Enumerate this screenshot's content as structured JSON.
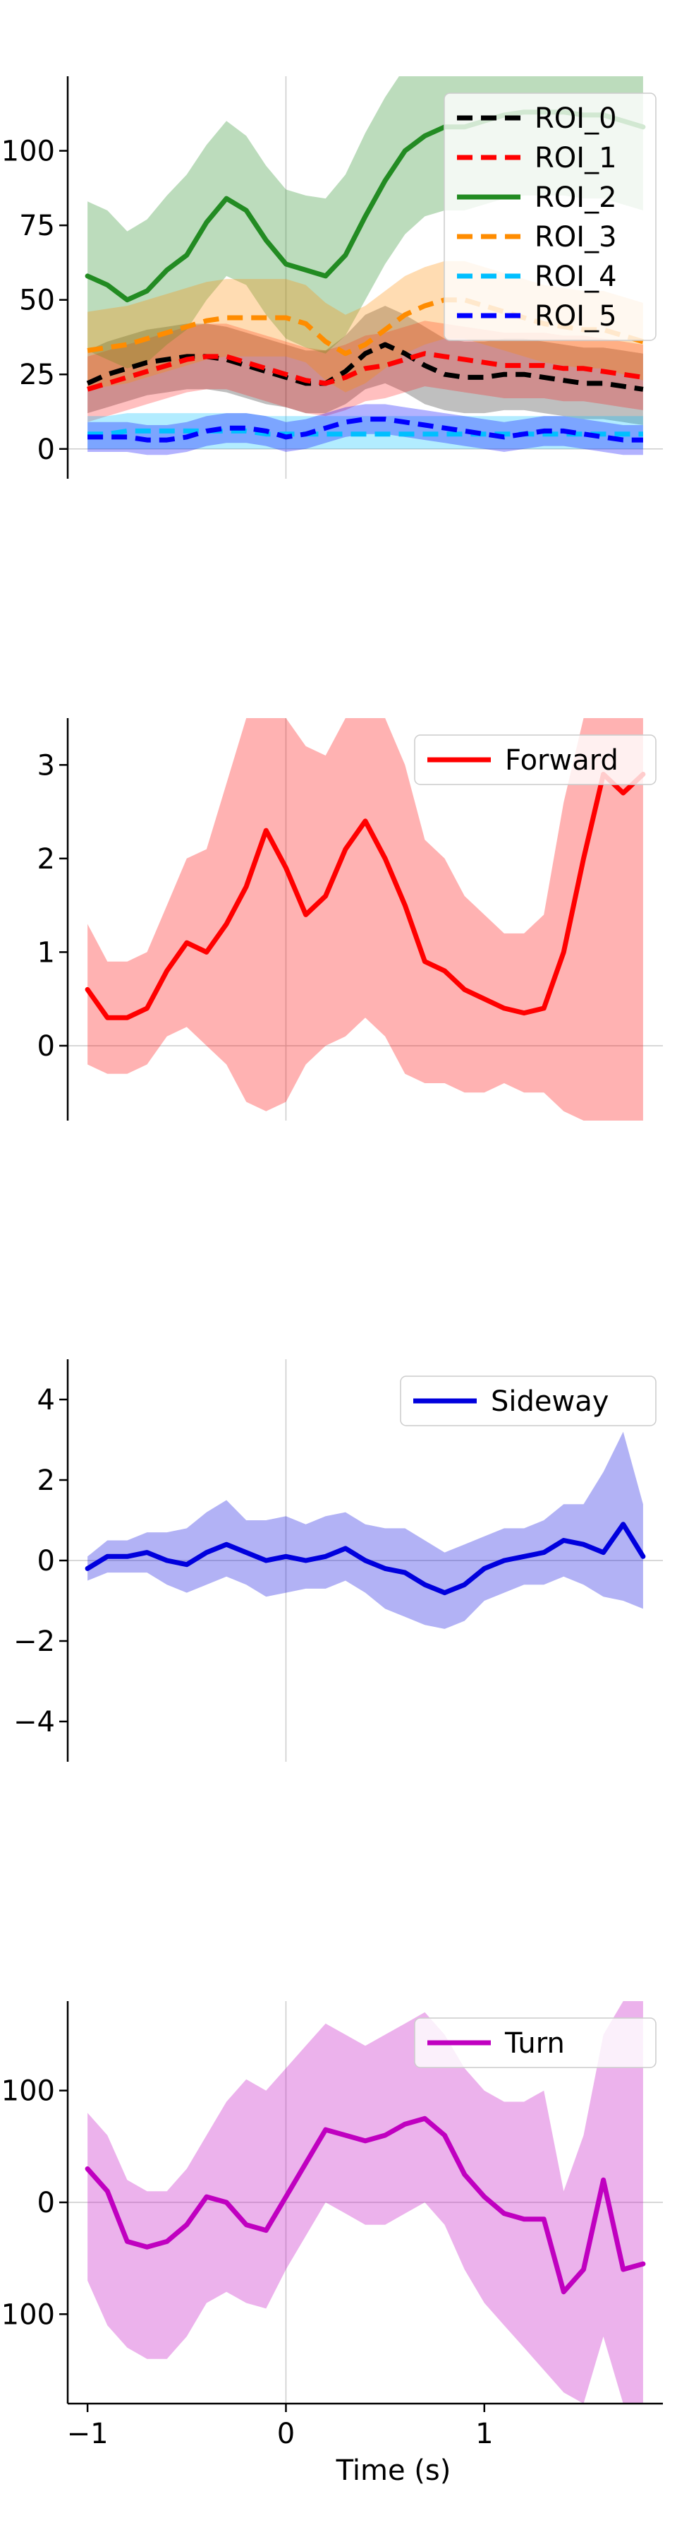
{
  "figure": {
    "xlabel": "Time (s)",
    "x_ticks": [
      -1,
      0,
      1
    ],
    "x_tick_labels": [
      "−1",
      "0",
      "1"
    ],
    "xlim": [
      -1.1,
      1.9
    ]
  },
  "chart_data": [
    {
      "type": "line",
      "ylim": [
        -10,
        125
      ],
      "y_ticks": [
        0,
        25,
        50,
        75,
        100
      ],
      "y_tick_labels": [
        "0",
        "25",
        "50",
        "75",
        "100"
      ],
      "legend_position": "top-right",
      "vline_x": 0,
      "hline_y": 0,
      "x": [
        -1.0,
        -0.9,
        -0.8,
        -0.7,
        -0.6,
        -0.5,
        -0.4,
        -0.3,
        -0.2,
        -0.1,
        0.0,
        0.1,
        0.2,
        0.3,
        0.4,
        0.5,
        0.6,
        0.7,
        0.8,
        0.9,
        1.0,
        1.1,
        1.2,
        1.3,
        1.4,
        1.5,
        1.6,
        1.7,
        1.8
      ],
      "series": [
        {
          "name": "ROI_0",
          "color": "#000000",
          "dashed": true,
          "band_opacity": 0.25,
          "values": [
            22,
            25,
            27,
            29,
            30,
            31,
            31,
            30,
            28,
            26,
            24,
            22,
            22,
            26,
            32,
            35,
            32,
            28,
            25,
            24,
            24,
            25,
            25,
            24,
            23,
            22,
            22,
            21,
            20
          ],
          "lower": [
            12,
            14,
            16,
            18,
            19,
            20,
            20,
            19,
            17,
            15,
            14,
            12,
            12,
            15,
            20,
            22,
            19,
            15,
            13,
            12,
            12,
            13,
            13,
            12,
            11,
            10,
            10,
            9,
            8
          ],
          "upper": [
            33,
            36,
            38,
            40,
            41,
            42,
            42,
            41,
            39,
            37,
            35,
            33,
            33,
            38,
            45,
            48,
            45,
            41,
            37,
            36,
            36,
            37,
            37,
            36,
            35,
            34,
            34,
            33,
            32
          ]
        },
        {
          "name": "ROI_1",
          "color": "#ff0000",
          "dashed": true,
          "band_opacity": 0.25,
          "values": [
            20,
            22,
            24,
            26,
            28,
            30,
            31,
            31,
            29,
            27,
            25,
            23,
            22,
            24,
            27,
            28,
            30,
            32,
            31,
            30,
            29,
            28,
            28,
            28,
            27,
            27,
            26,
            25,
            24
          ],
          "lower": [
            9,
            11,
            13,
            15,
            17,
            19,
            20,
            20,
            18,
            16,
            14,
            12,
            11,
            13,
            16,
            17,
            19,
            21,
            20,
            19,
            18,
            17,
            17,
            17,
            16,
            16,
            15,
            14,
            13
          ],
          "upper": [
            31,
            33,
            35,
            37,
            39,
            41,
            42,
            42,
            40,
            38,
            36,
            34,
            33,
            35,
            38,
            39,
            41,
            43,
            42,
            41,
            40,
            39,
            39,
            39,
            38,
            38,
            37,
            36,
            35
          ]
        },
        {
          "name": "ROI_2",
          "color": "#228b22",
          "dashed": false,
          "band_opacity": 0.3,
          "values": [
            58,
            55,
            50,
            53,
            60,
            65,
            76,
            84,
            80,
            70,
            62,
            60,
            58,
            65,
            78,
            90,
            100,
            105,
            108,
            108,
            110,
            112,
            113,
            113,
            113,
            112,
            112,
            110,
            108
          ],
          "lower": [
            33,
            30,
            27,
            29,
            35,
            40,
            50,
            58,
            55,
            45,
            37,
            34,
            32,
            38,
            50,
            62,
            72,
            78,
            80,
            80,
            82,
            84,
            85,
            85,
            85,
            84,
            84,
            82,
            80
          ],
          "upper": [
            83,
            80,
            73,
            77,
            85,
            92,
            102,
            110,
            105,
            95,
            87,
            85,
            84,
            92,
            106,
            118,
            128,
            132,
            135,
            135,
            137,
            140,
            141,
            141,
            141,
            140,
            140,
            138,
            136
          ]
        },
        {
          "name": "ROI_3",
          "color": "#ff8c00",
          "dashed": true,
          "band_opacity": 0.3,
          "values": [
            33,
            34,
            35,
            37,
            39,
            41,
            43,
            44,
            44,
            44,
            44,
            42,
            36,
            32,
            35,
            40,
            45,
            48,
            50,
            50,
            48,
            46,
            44,
            42,
            41,
            40,
            40,
            38,
            36
          ],
          "lower": [
            20,
            21,
            22,
            24,
            26,
            28,
            30,
            31,
            31,
            31,
            31,
            29,
            23,
            19,
            22,
            27,
            32,
            35,
            37,
            37,
            35,
            33,
            31,
            29,
            28,
            27,
            27,
            25,
            23
          ],
          "upper": [
            46,
            47,
            48,
            50,
            52,
            54,
            56,
            57,
            57,
            57,
            57,
            55,
            49,
            45,
            48,
            53,
            58,
            61,
            63,
            63,
            61,
            59,
            57,
            55,
            54,
            53,
            53,
            51,
            49
          ]
        },
        {
          "name": "ROI_4",
          "color": "#00bfff",
          "dashed": true,
          "band_opacity": 0.3,
          "values": [
            5,
            5,
            6,
            6,
            6,
            6,
            6,
            6,
            6,
            5,
            5,
            5,
            5,
            5,
            5,
            5,
            5,
            5,
            5,
            5,
            5,
            5,
            5,
            5,
            5,
            5,
            5,
            5,
            5
          ],
          "lower": [
            0,
            0,
            0,
            0,
            0,
            0,
            0,
            0,
            0,
            0,
            0,
            0,
            0,
            0,
            0,
            0,
            0,
            0,
            0,
            0,
            0,
            0,
            0,
            0,
            0,
            0,
            0,
            0,
            0
          ],
          "upper": [
            11,
            11,
            12,
            12,
            12,
            12,
            12,
            12,
            12,
            11,
            11,
            11,
            11,
            11,
            11,
            11,
            11,
            11,
            11,
            11,
            11,
            11,
            11,
            11,
            11,
            11,
            11,
            11,
            11
          ]
        },
        {
          "name": "ROI_5",
          "color": "#0000ff",
          "dashed": true,
          "band_opacity": 0.3,
          "values": [
            4,
            4,
            4,
            3,
            3,
            4,
            6,
            7,
            7,
            6,
            4,
            5,
            7,
            9,
            10,
            10,
            9,
            8,
            7,
            6,
            5,
            4,
            5,
            6,
            6,
            5,
            4,
            3,
            3
          ],
          "lower": [
            -1,
            -1,
            -1,
            -2,
            -2,
            -1,
            1,
            2,
            2,
            1,
            -1,
            0,
            2,
            4,
            5,
            5,
            4,
            3,
            2,
            1,
            0,
            -1,
            0,
            1,
            1,
            0,
            -1,
            -2,
            -2
          ],
          "upper": [
            9,
            9,
            9,
            8,
            8,
            9,
            11,
            12,
            12,
            11,
            9,
            10,
            12,
            14,
            15,
            15,
            14,
            13,
            12,
            11,
            10,
            9,
            10,
            11,
            11,
            10,
            9,
            8,
            8
          ]
        }
      ]
    },
    {
      "type": "line",
      "ylim": [
        -0.8,
        3.5
      ],
      "y_ticks": [
        0,
        1,
        2,
        3
      ],
      "y_tick_labels": [
        "0",
        "1",
        "2",
        "3"
      ],
      "legend_position": "top-right",
      "vline_x": 0,
      "hline_y": 0,
      "x": [
        -1.0,
        -0.9,
        -0.8,
        -0.7,
        -0.6,
        -0.5,
        -0.4,
        -0.3,
        -0.2,
        -0.1,
        0.0,
        0.1,
        0.2,
        0.3,
        0.4,
        0.5,
        0.6,
        0.7,
        0.8,
        0.9,
        1.0,
        1.1,
        1.2,
        1.3,
        1.4,
        1.5,
        1.6,
        1.7,
        1.8
      ],
      "series": [
        {
          "name": "Forward",
          "color": "#ff0000",
          "dashed": false,
          "band_opacity": 0.3,
          "values": [
            0.6,
            0.3,
            0.3,
            0.4,
            0.8,
            1.1,
            1.0,
            1.3,
            1.7,
            2.3,
            1.9,
            1.4,
            1.6,
            2.1,
            2.4,
            2.0,
            1.5,
            0.9,
            0.8,
            0.6,
            0.5,
            0.4,
            0.35,
            0.4,
            1.0,
            2.0,
            2.9,
            2.7,
            2.9
          ],
          "lower": [
            -0.2,
            -0.3,
            -0.3,
            -0.2,
            0.1,
            0.2,
            0.0,
            -0.2,
            -0.6,
            -0.7,
            -0.6,
            -0.2,
            0.0,
            0.1,
            0.3,
            0.1,
            -0.3,
            -0.4,
            -0.4,
            -0.5,
            -0.5,
            -0.4,
            -0.5,
            -0.5,
            -0.7,
            -0.8,
            -0.8,
            -0.8,
            -0.8
          ],
          "upper": [
            1.3,
            0.9,
            0.9,
            1.0,
            1.5,
            2.0,
            2.1,
            2.8,
            3.5,
            3.5,
            3.5,
            3.2,
            3.1,
            3.5,
            3.5,
            3.5,
            3.0,
            2.2,
            2.0,
            1.6,
            1.4,
            1.2,
            1.2,
            1.4,
            2.6,
            3.5,
            3.5,
            3.5,
            3.5
          ]
        }
      ]
    },
    {
      "type": "line",
      "ylim": [
        -5,
        5
      ],
      "y_ticks": [
        -4,
        -2,
        0,
        2,
        4
      ],
      "y_tick_labels": [
        "−4",
        "−2",
        "0",
        "2",
        "4"
      ],
      "legend_position": "top-right",
      "vline_x": 0,
      "hline_y": 0,
      "x": [
        -1.0,
        -0.9,
        -0.8,
        -0.7,
        -0.6,
        -0.5,
        -0.4,
        -0.3,
        -0.2,
        -0.1,
        0.0,
        0.1,
        0.2,
        0.3,
        0.4,
        0.5,
        0.6,
        0.7,
        0.8,
        0.9,
        1.0,
        1.1,
        1.2,
        1.3,
        1.4,
        1.5,
        1.6,
        1.7,
        1.8
      ],
      "series": [
        {
          "name": "Sideway",
          "color": "#0000dd",
          "dashed": false,
          "band_opacity": 0.3,
          "values": [
            -0.2,
            0.1,
            0.1,
            0.2,
            0.0,
            -0.1,
            0.2,
            0.4,
            0.2,
            0.0,
            0.1,
            0.0,
            0.1,
            0.3,
            0.0,
            -0.2,
            -0.3,
            -0.6,
            -0.8,
            -0.6,
            -0.2,
            0.0,
            0.1,
            0.2,
            0.5,
            0.4,
            0.2,
            0.9,
            0.1
          ],
          "lower": [
            -0.5,
            -0.3,
            -0.3,
            -0.3,
            -0.6,
            -0.8,
            -0.6,
            -0.4,
            -0.6,
            -0.9,
            -0.8,
            -0.7,
            -0.7,
            -0.5,
            -0.8,
            -1.2,
            -1.4,
            -1.6,
            -1.7,
            -1.5,
            -1.0,
            -0.8,
            -0.6,
            -0.6,
            -0.4,
            -0.6,
            -0.9,
            -1.0,
            -1.2
          ],
          "upper": [
            0.1,
            0.5,
            0.5,
            0.7,
            0.7,
            0.8,
            1.2,
            1.5,
            1.0,
            1.0,
            1.1,
            0.9,
            1.1,
            1.2,
            0.9,
            0.8,
            0.8,
            0.5,
            0.2,
            0.4,
            0.6,
            0.8,
            0.8,
            1.0,
            1.4,
            1.4,
            2.2,
            3.2,
            1.4
          ]
        }
      ]
    },
    {
      "type": "line",
      "ylim": [
        -180,
        180
      ],
      "y_ticks": [
        -100,
        0,
        100
      ],
      "y_tick_labels": [
        "−100",
        "0",
        "100"
      ],
      "legend_position": "top-right",
      "vline_x": 0,
      "hline_y": 0,
      "x": [
        -1.0,
        -0.9,
        -0.8,
        -0.7,
        -0.6,
        -0.5,
        -0.4,
        -0.3,
        -0.2,
        -0.1,
        0.0,
        0.1,
        0.2,
        0.3,
        0.4,
        0.5,
        0.6,
        0.7,
        0.8,
        0.9,
        1.0,
        1.1,
        1.2,
        1.3,
        1.4,
        1.5,
        1.6,
        1.7,
        1.8
      ],
      "series": [
        {
          "name": "Turn",
          "color": "#c000c0",
          "dashed": false,
          "band_opacity": 0.3,
          "values": [
            30,
            10,
            -35,
            -40,
            -35,
            -20,
            5,
            0,
            -20,
            -25,
            5,
            35,
            65,
            60,
            55,
            60,
            70,
            75,
            60,
            25,
            5,
            -10,
            -15,
            -15,
            -80,
            -60,
            20,
            -60,
            -55
          ],
          "lower": [
            -70,
            -110,
            -130,
            -140,
            -140,
            -120,
            -90,
            -80,
            -90,
            -95,
            -60,
            -30,
            0,
            -10,
            -20,
            -20,
            -10,
            0,
            -20,
            -60,
            -90,
            -110,
            -130,
            -150,
            -170,
            -180,
            -120,
            -180,
            -180
          ],
          "upper": [
            80,
            60,
            20,
            10,
            10,
            30,
            60,
            90,
            110,
            100,
            120,
            140,
            160,
            150,
            140,
            150,
            160,
            170,
            150,
            120,
            100,
            90,
            90,
            100,
            10,
            60,
            150,
            180,
            180
          ]
        }
      ]
    }
  ]
}
